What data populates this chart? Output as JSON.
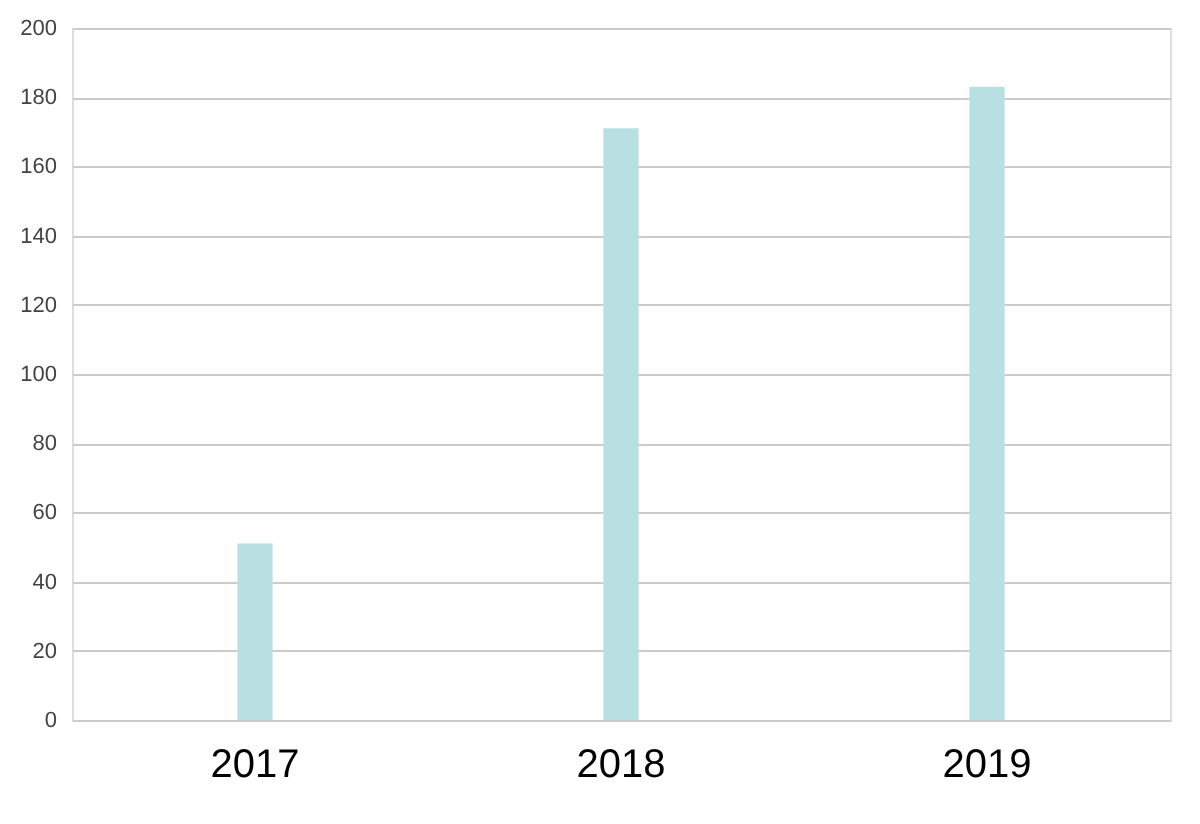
{
  "chart_data": {
    "type": "bar",
    "categories": [
      "2017",
      "2018",
      "2019"
    ],
    "values": [
      51,
      171,
      183
    ],
    "color": "#b8dfe2",
    "ylim": [
      0,
      200
    ],
    "yticks": [
      0,
      20,
      40,
      60,
      80,
      100,
      120,
      140,
      160,
      180,
      200
    ],
    "grid": "y"
  }
}
